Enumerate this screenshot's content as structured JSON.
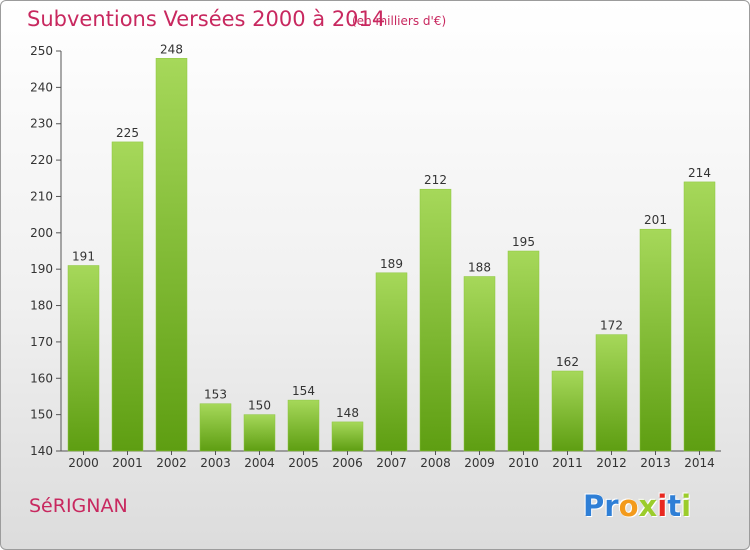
{
  "header": {
    "title": "Subventions Versées 2000 à 2014",
    "unit_note": "(en milliers d'€)"
  },
  "footer": {
    "commune_name": "SéRIGNAN",
    "logo_text": "Proxiti"
  },
  "colors": {
    "title": "#c8285f",
    "bar_top": "#a6d85a",
    "bar_bottom": "#5e9e12",
    "logo_letters": [
      "#2f7fd6",
      "#2f7fd6",
      "#f39a1b",
      "#9bcc2c",
      "#e8271f",
      "#2f7fd6",
      "#9bcc2c"
    ]
  },
  "chart_data": {
    "type": "bar",
    "categories": [
      "2000",
      "2001",
      "2002",
      "2003",
      "2004",
      "2005",
      "2006",
      "2007",
      "2008",
      "2009",
      "2010",
      "2011",
      "2012",
      "2013",
      "2014"
    ],
    "values": [
      191,
      225,
      248,
      153,
      150,
      154,
      148,
      189,
      212,
      188,
      195,
      162,
      172,
      201,
      214
    ],
    "ylim": [
      140,
      250
    ],
    "yticks": [
      140,
      150,
      160,
      170,
      180,
      190,
      200,
      210,
      220,
      230,
      240,
      250
    ],
    "grid": false,
    "data_labels": true
  }
}
